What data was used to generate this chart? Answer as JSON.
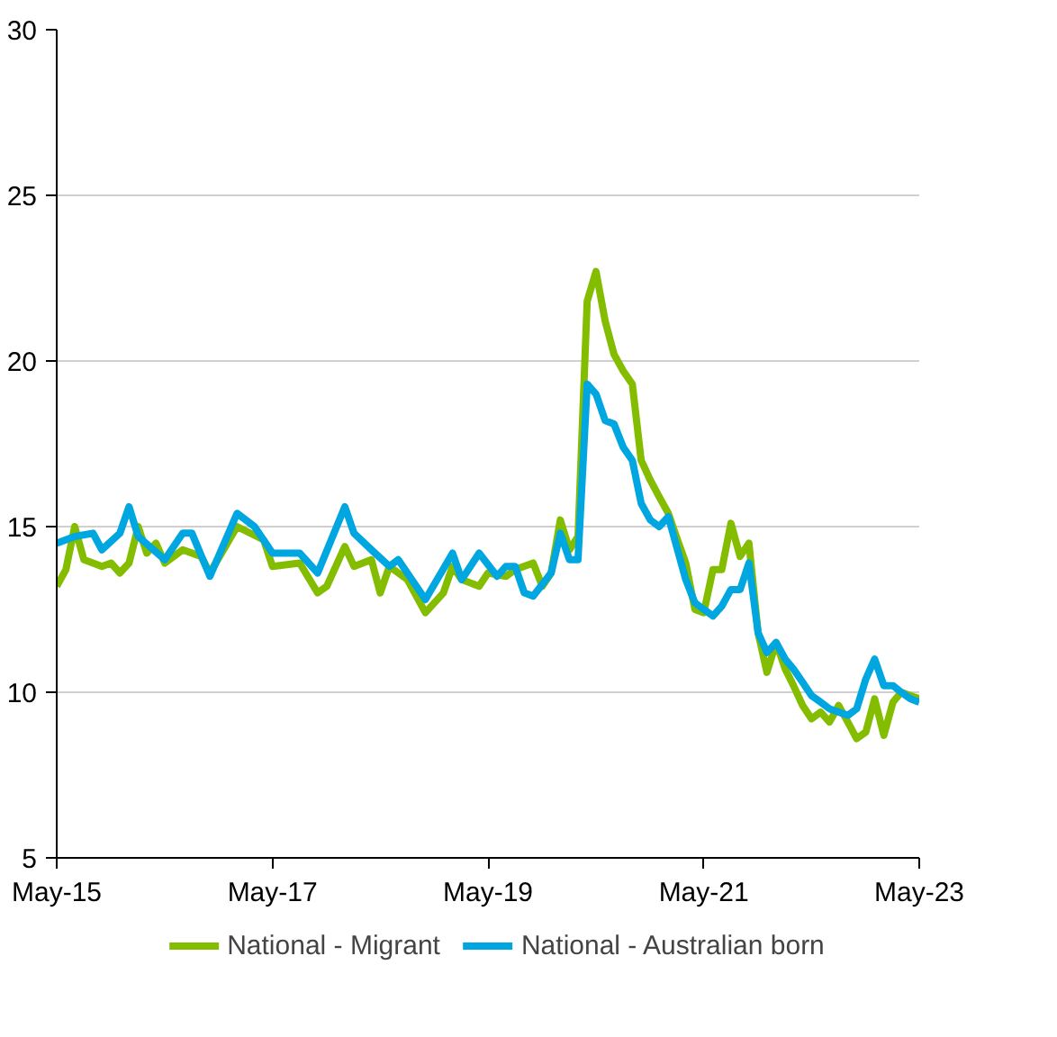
{
  "chart_data": {
    "type": "line",
    "xlim": [
      "2015-05",
      "2023-05"
    ],
    "ylim": [
      5,
      30
    ],
    "xticks": [
      {
        "value": "2015-05",
        "label": "May-15"
      },
      {
        "value": "2017-05",
        "label": "May-17"
      },
      {
        "value": "2019-05",
        "label": "May-19"
      },
      {
        "value": "2021-05",
        "label": "May-21"
      },
      {
        "value": "2023-05",
        "label": "May-23"
      }
    ],
    "yticks": [
      5,
      10,
      15,
      20,
      25,
      30
    ],
    "grid": "y",
    "legend": "bottom",
    "line_style": "solid",
    "marker": "none",
    "series": [
      {
        "name": "National - Migrant",
        "color": "#84bd00",
        "x": [
          "2015-05",
          "2015-06",
          "2015-07",
          "2015-08",
          "2015-09",
          "2015-10",
          "2015-11",
          "2015-12",
          "2016-01",
          "2016-02",
          "2016-03",
          "2016-04",
          "2016-05",
          "2016-07",
          "2016-09",
          "2016-10",
          "2017-01",
          "2017-04",
          "2017-05",
          "2017-08",
          "2017-10",
          "2017-11",
          "2018-01",
          "2018-02",
          "2018-04",
          "2018-05",
          "2018-06",
          "2018-08",
          "2018-10",
          "2018-12",
          "2019-01",
          "2019-02",
          "2019-04",
          "2019-05",
          "2019-07",
          "2019-08",
          "2019-10",
          "2019-11",
          "2019-12",
          "2020-01",
          "2020-02",
          "2020-03",
          "2020-04",
          "2020-05",
          "2020-06",
          "2020-07",
          "2020-08",
          "2020-09",
          "2020-10",
          "2020-11",
          "2020-12",
          "2021-01",
          "2021-02",
          "2021-03",
          "2021-04",
          "2021-05",
          "2021-06",
          "2021-07",
          "2021-08",
          "2021-09",
          "2021-10",
          "2021-11",
          "2021-12",
          "2022-01",
          "2022-02",
          "2022-03",
          "2022-04",
          "2022-05",
          "2022-06",
          "2022-07",
          "2022-08",
          "2022-09",
          "2022-10",
          "2022-11",
          "2022-12",
          "2023-01",
          "2023-02",
          "2023-03",
          "2023-04",
          "2023-05"
        ],
        "values": [
          13.2,
          13.7,
          15.0,
          14.0,
          13.9,
          13.8,
          13.9,
          13.6,
          13.9,
          15.0,
          14.2,
          14.5,
          13.9,
          14.3,
          14.1,
          13.6,
          15.0,
          14.6,
          13.8,
          13.9,
          13.0,
          13.2,
          14.4,
          13.8,
          14.0,
          13.0,
          13.8,
          13.4,
          12.4,
          13.0,
          13.8,
          13.4,
          13.2,
          13.6,
          13.5,
          13.7,
          13.9,
          13.2,
          13.6,
          15.2,
          14.3,
          14.7,
          21.8,
          22.7,
          21.2,
          20.2,
          19.7,
          19.3,
          17.0,
          16.4,
          15.9,
          15.4,
          14.6,
          13.9,
          12.5,
          12.4,
          13.7,
          13.7,
          15.1,
          14.1,
          14.5,
          11.8,
          10.6,
          11.5,
          10.7,
          10.2,
          9.6,
          9.2,
          9.4,
          9.1,
          9.6,
          9.1,
          8.6,
          8.8,
          9.8,
          8.7,
          9.7,
          10.0,
          9.9,
          9.8
        ]
      },
      {
        "name": "National - Australian born",
        "color": "#00a6e0",
        "x": [
          "2015-05",
          "2015-07",
          "2015-09",
          "2015-10",
          "2015-12",
          "2016-01",
          "2016-02",
          "2016-05",
          "2016-07",
          "2016-08",
          "2016-10",
          "2017-01",
          "2017-03",
          "2017-05",
          "2017-08",
          "2017-10",
          "2018-01",
          "2018-02",
          "2018-04",
          "2018-06",
          "2018-07",
          "2018-10",
          "2019-01",
          "2019-02",
          "2019-04",
          "2019-06",
          "2019-07",
          "2019-08",
          "2019-09",
          "2019-10",
          "2019-12",
          "2020-01",
          "2020-02",
          "2020-03",
          "2020-04",
          "2020-05",
          "2020-06",
          "2020-07",
          "2020-08",
          "2020-09",
          "2020-10",
          "2020-11",
          "2020-12",
          "2021-01",
          "2021-02",
          "2021-03",
          "2021-04",
          "2021-05",
          "2021-06",
          "2021-07",
          "2021-08",
          "2021-09",
          "2021-10",
          "2021-11",
          "2021-12",
          "2022-01",
          "2022-02",
          "2022-03",
          "2022-04",
          "2022-05",
          "2022-06",
          "2022-07",
          "2022-08",
          "2022-09",
          "2022-10",
          "2022-11",
          "2022-12",
          "2023-01",
          "2023-02",
          "2023-03",
          "2023-04",
          "2023-05"
        ],
        "values": [
          14.5,
          14.7,
          14.8,
          14.3,
          14.8,
          15.6,
          14.7,
          14.0,
          14.8,
          14.8,
          13.5,
          15.4,
          15.0,
          14.2,
          14.2,
          13.6,
          15.6,
          14.8,
          14.3,
          13.8,
          14.0,
          12.8,
          14.2,
          13.4,
          14.2,
          13.5,
          13.8,
          13.8,
          13.0,
          12.9,
          13.6,
          14.8,
          14.0,
          14.0,
          19.3,
          19.0,
          18.2,
          18.1,
          17.4,
          17.0,
          15.7,
          15.2,
          15.0,
          15.3,
          14.3,
          13.4,
          12.7,
          12.5,
          12.3,
          12.6,
          13.1,
          13.1,
          13.9,
          11.8,
          11.2,
          11.5,
          11.0,
          10.7,
          10.3,
          9.9,
          9.7,
          9.5,
          9.4,
          9.3,
          9.5,
          10.4,
          11.0,
          10.2,
          10.2,
          10.0,
          9.8,
          9.7
        ]
      }
    ]
  }
}
